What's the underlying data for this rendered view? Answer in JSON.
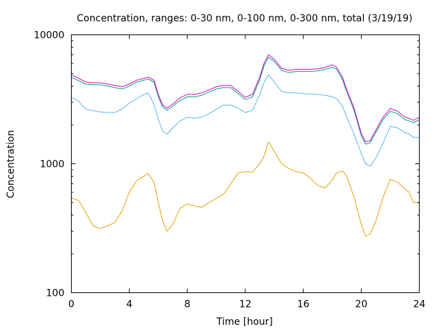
{
  "chart_data": {
    "type": "line",
    "title": "Concentration, ranges: 0-30 nm, 0-100 nm, 0-300 nm, total (3/19/19)",
    "xlabel": "Time [hour]",
    "ylabel": "Concentration",
    "xlim": [
      0,
      24
    ],
    "ylim": [
      100,
      10000
    ],
    "yscale": "log",
    "grid": false,
    "legend": "none",
    "x_ticks": [
      0,
      4,
      8,
      12,
      16,
      20,
      24
    ],
    "x_tick_labels": [
      "0",
      "4",
      "8",
      "12",
      "16",
      "20",
      "24"
    ],
    "y_ticks": [
      100,
      1000,
      10000
    ],
    "y_tick_labels": [
      "100",
      "1000",
      "10000"
    ],
    "series": [
      {
        "name": "0-30 nm",
        "color": "#e69f00",
        "x": [
          0,
          0.5,
          1,
          1.5,
          2,
          2.5,
          3,
          3.5,
          4,
          4.5,
          5,
          5.3,
          5.7,
          6,
          6.3,
          6.6,
          7,
          7.5,
          8,
          8.5,
          9,
          9.5,
          10,
          10.5,
          11,
          11.5,
          12,
          12.5,
          13,
          13.3,
          13.6,
          14,
          14.5,
          15,
          15.5,
          16,
          16.5,
          17,
          17.5,
          18,
          18.3,
          18.7,
          19,
          19.5,
          20,
          20.3,
          20.6,
          21,
          21.5,
          22,
          22.5,
          23,
          23.3,
          23.6,
          24
        ],
        "values": [
          545,
          520,
          420,
          330,
          315,
          330,
          350,
          430,
          600,
          740,
          800,
          840,
          720,
          500,
          360,
          300,
          340,
          450,
          490,
          470,
          460,
          500,
          540,
          580,
          700,
          850,
          870,
          860,
          1000,
          1150,
          1480,
          1250,
          1000,
          920,
          870,
          850,
          770,
          680,
          650,
          750,
          850,
          880,
          800,
          550,
          340,
          275,
          285,
          360,
          550,
          760,
          720,
          640,
          600,
          500,
          500
        ]
      },
      {
        "name": "0-100 nm",
        "color": "#56b4e9",
        "x": [
          0,
          0.5,
          1,
          1.5,
          2,
          2.5,
          3,
          3.5,
          4,
          4.5,
          5,
          5.3,
          5.7,
          6,
          6.3,
          6.6,
          7,
          7.5,
          8,
          8.5,
          9,
          9.5,
          10,
          10.5,
          11,
          11.5,
          12,
          12.5,
          13,
          13.3,
          13.6,
          14,
          14.5,
          15,
          15.5,
          16,
          16.5,
          17,
          17.5,
          18,
          18.3,
          18.7,
          19,
          19.5,
          20,
          20.3,
          20.6,
          21,
          21.5,
          22,
          22.5,
          23,
          23.3,
          23.6,
          24
        ],
        "values": [
          3300,
          3050,
          2650,
          2580,
          2520,
          2500,
          2500,
          2650,
          2950,
          3200,
          3450,
          3550,
          2900,
          2200,
          1800,
          1700,
          1900,
          2150,
          2300,
          2250,
          2300,
          2450,
          2650,
          2850,
          2850,
          2700,
          2500,
          2600,
          3450,
          4300,
          4900,
          4300,
          3650,
          3550,
          3550,
          3500,
          3480,
          3450,
          3400,
          3300,
          3200,
          2800,
          2300,
          1700,
          1200,
          1000,
          960,
          1100,
          1450,
          1950,
          1900,
          1750,
          1700,
          1600,
          1600
        ]
      },
      {
        "name": "0-300 nm",
        "color": "#009e73",
        "x": [
          0,
          0.5,
          1,
          1.5,
          2,
          2.5,
          3,
          3.5,
          4,
          4.5,
          5,
          5.3,
          5.7,
          6,
          6.3,
          6.6,
          7,
          7.5,
          8,
          8.5,
          9,
          9.5,
          10,
          10.5,
          11,
          11.5,
          12,
          12.5,
          13,
          13.3,
          13.6,
          14,
          14.5,
          15,
          15.5,
          16,
          16.5,
          17,
          17.5,
          18,
          18.3,
          18.7,
          19,
          19.5,
          20,
          20.3,
          20.6,
          21,
          21.5,
          22,
          22.5,
          23,
          23.3,
          23.6,
          24
        ],
        "values": [
          4700,
          4400,
          4150,
          4100,
          4100,
          4000,
          3900,
          3800,
          4000,
          4300,
          4450,
          4550,
          4300,
          3300,
          2750,
          2600,
          2800,
          3100,
          3300,
          3300,
          3400,
          3600,
          3800,
          3900,
          3900,
          3500,
          3150,
          3300,
          4500,
          5800,
          6700,
          6200,
          5300,
          5100,
          5200,
          5200,
          5200,
          5250,
          5400,
          5600,
          5400,
          4500,
          3600,
          2600,
          1650,
          1420,
          1450,
          1750,
          2200,
          2550,
          2450,
          2200,
          2150,
          2080,
          2200
        ]
      },
      {
        "name": "total",
        "color": "#cc00cc",
        "x": [
          0,
          0.5,
          1,
          1.5,
          2,
          2.5,
          3,
          3.5,
          4,
          4.5,
          5,
          5.3,
          5.7,
          6,
          6.3,
          6.6,
          7,
          7.5,
          8,
          8.5,
          9,
          9.5,
          10,
          10.5,
          11,
          11.5,
          12,
          12.5,
          13,
          13.3,
          13.6,
          14,
          14.5,
          15,
          15.5,
          16,
          16.5,
          17,
          17.5,
          18,
          18.3,
          18.7,
          19,
          19.5,
          20,
          20.3,
          20.6,
          21,
          21.5,
          22,
          22.5,
          23,
          23.3,
          23.6,
          24
        ],
        "values": [
          4900,
          4600,
          4300,
          4250,
          4250,
          4150,
          4050,
          3950,
          4150,
          4450,
          4600,
          4700,
          4450,
          3450,
          2850,
          2700,
          2900,
          3250,
          3450,
          3450,
          3550,
          3750,
          3950,
          4050,
          4050,
          3650,
          3280,
          3450,
          4700,
          6050,
          7000,
          6450,
          5500,
          5300,
          5400,
          5400,
          5400,
          5450,
          5600,
          5850,
          5600,
          4700,
          3750,
          2700,
          1720,
          1480,
          1510,
          1820,
          2300,
          2680,
          2560,
          2300,
          2250,
          2170,
          2300
        ]
      }
    ]
  }
}
